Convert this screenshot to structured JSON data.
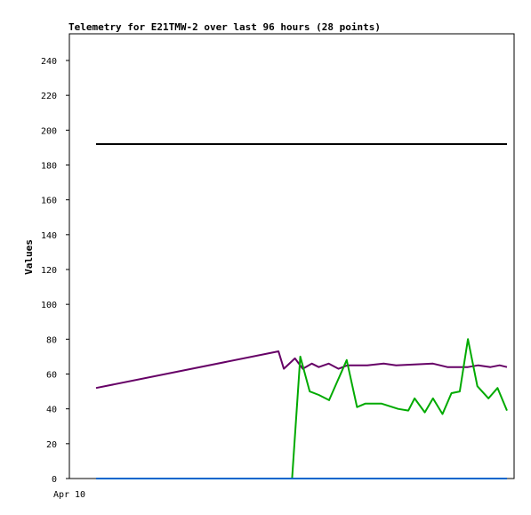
{
  "chart_data": {
    "type": "line",
    "title": "Telemetry for E21TMW-2 over last 96 hours (28 points)",
    "ylabel": "Values",
    "xlabel": "",
    "ylim": [
      0,
      255
    ],
    "yticks": [
      0,
      20,
      40,
      60,
      80,
      100,
      120,
      140,
      160,
      180,
      200,
      220,
      240
    ],
    "x_tick_labels": [
      "Apr 10"
    ],
    "grid": false,
    "series": [
      {
        "color": "#000000",
        "points": [
          [
            0,
            192
          ],
          [
            1,
            192
          ]
        ]
      },
      {
        "color": "#660066",
        "points": [
          [
            0.0,
            52
          ],
          [
            0.444,
            73
          ],
          [
            0.457,
            63
          ],
          [
            0.484,
            69
          ],
          [
            0.503,
            63
          ],
          [
            0.525,
            66
          ],
          [
            0.542,
            64
          ],
          [
            0.566,
            66
          ],
          [
            0.59,
            63
          ],
          [
            0.612,
            65
          ],
          [
            0.66,
            65
          ],
          [
            0.7,
            66
          ],
          [
            0.73,
            65
          ],
          [
            0.82,
            66
          ],
          [
            0.855,
            64
          ],
          [
            0.905,
            64
          ],
          [
            0.93,
            65
          ],
          [
            0.96,
            64
          ],
          [
            0.982,
            65
          ],
          [
            1.0,
            64
          ]
        ]
      },
      {
        "color": "#00aa00",
        "points": [
          [
            0.477,
            0
          ],
          [
            0.497,
            70
          ],
          [
            0.52,
            50
          ],
          [
            0.542,
            48
          ],
          [
            0.567,
            45
          ],
          [
            0.61,
            68
          ],
          [
            0.635,
            41
          ],
          [
            0.655,
            43
          ],
          [
            0.695,
            43
          ],
          [
            0.735,
            40
          ],
          [
            0.76,
            39
          ],
          [
            0.775,
            46
          ],
          [
            0.8,
            38
          ],
          [
            0.82,
            46
          ],
          [
            0.843,
            37
          ],
          [
            0.865,
            49
          ],
          [
            0.885,
            50
          ],
          [
            0.905,
            80
          ],
          [
            0.928,
            53
          ],
          [
            0.955,
            46
          ],
          [
            0.977,
            52
          ],
          [
            1.0,
            39
          ]
        ]
      },
      {
        "color": "#0066cc",
        "points": [
          [
            0,
            0
          ],
          [
            1,
            0
          ]
        ]
      }
    ]
  }
}
